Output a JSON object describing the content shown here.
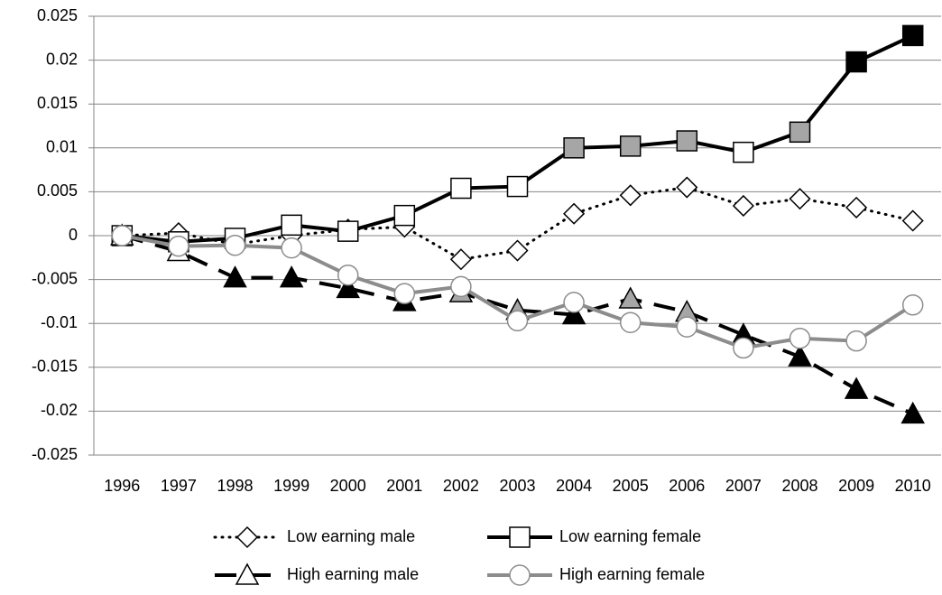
{
  "chart_data": {
    "type": "line",
    "categories": [
      "1996",
      "1997",
      "1998",
      "1999",
      "2000",
      "2001",
      "2002",
      "2003",
      "2004",
      "2005",
      "2006",
      "2007",
      "2008",
      "2009",
      "2010"
    ],
    "ylim": [
      -0.025,
      0.025
    ],
    "yticks": [
      -0.025,
      -0.02,
      -0.015,
      -0.01,
      -0.005,
      0,
      0.005,
      0.01,
      0.015,
      0.02,
      0.025
    ],
    "grid": true,
    "legend": "bottom",
    "series": [
      {
        "name": "Low earning male",
        "color": "#000000",
        "line_style": "dotted",
        "marker": "diamond",
        "values": [
          0,
          0.0003,
          -0.001,
          0,
          0.0007,
          0.001,
          -0.0027,
          -0.0017,
          0.0025,
          0.0046,
          0.0055,
          0.0034,
          0.0042,
          0.0032,
          0.0017
        ],
        "marker_fills": [
          "#ffffff",
          "#ffffff",
          "#ffffff",
          "#ffffff",
          "#ffffff",
          "#ffffff",
          "#ffffff",
          "#ffffff",
          "#ffffff",
          "#ffffff",
          "#ffffff",
          "#ffffff",
          "#ffffff",
          "#ffffff",
          "#ffffff"
        ]
      },
      {
        "name": "Low earning female",
        "color": "#000000",
        "line_style": "solid",
        "marker": "square",
        "values": [
          0,
          -0.0007,
          -0.0003,
          0.0012,
          0.0005,
          0.0023,
          0.0054,
          0.0056,
          0.01,
          0.0102,
          0.0108,
          0.0095,
          0.0118,
          0.0198,
          0.0228
        ],
        "marker_fills": [
          "#ffffff",
          "#ffffff",
          "#ffffff",
          "#ffffff",
          "#ffffff",
          "#ffffff",
          "#ffffff",
          "#ffffff",
          "#a6a6a6",
          "#a6a6a6",
          "#a6a6a6",
          "#ffffff",
          "#a6a6a6",
          "#000000",
          "#000000"
        ]
      },
      {
        "name": "High earning male",
        "color": "#000000",
        "line_style": "dashed",
        "marker": "triangle",
        "values": [
          0,
          -0.0018,
          -0.0048,
          -0.0048,
          -0.006,
          -0.0075,
          -0.0065,
          -0.0085,
          -0.009,
          -0.0072,
          -0.0087,
          -0.0113,
          -0.0138,
          -0.0175,
          -0.0203
        ],
        "marker_fills": [
          "#ffffff",
          "#ffffff",
          "#000000",
          "#000000",
          "#000000",
          "#000000",
          "#a6a6a6",
          "#a6a6a6",
          "#000000",
          "#a6a6a6",
          "#a6a6a6",
          "#000000",
          "#000000",
          "#000000",
          "#000000"
        ]
      },
      {
        "name": "High earning female",
        "color": "#8c8c8c",
        "line_style": "solid",
        "marker": "circle",
        "values": [
          0,
          -0.0012,
          -0.0011,
          -0.0014,
          -0.0045,
          -0.0066,
          -0.0058,
          -0.0097,
          -0.0076,
          -0.0099,
          -0.0104,
          -0.0128,
          -0.0117,
          -0.012,
          -0.0079
        ],
        "marker_fills": [
          "#ffffff",
          "#ffffff",
          "#ffffff",
          "#ffffff",
          "#ffffff",
          "#ffffff",
          "#ffffff",
          "#ffffff",
          "#ffffff",
          "#ffffff",
          "#ffffff",
          "#ffffff",
          "#ffffff",
          "#ffffff",
          "#ffffff"
        ]
      }
    ]
  }
}
